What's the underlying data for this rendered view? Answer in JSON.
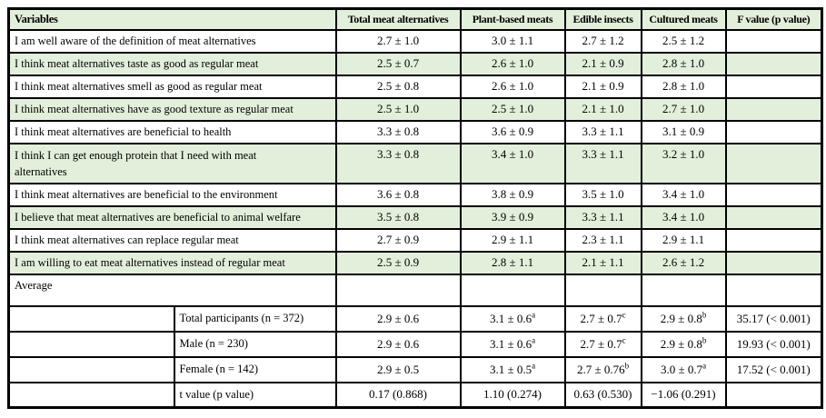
{
  "colors": {
    "row_band_green": "#e2efda",
    "border": "#000000",
    "page_background": "#ffffff",
    "text": "#000000"
  },
  "table": {
    "columns": [
      "Variables",
      "Total meat alternatives",
      "Plant-based meats",
      "Edible insects",
      "Cultured meats",
      "F value (p value)"
    ],
    "rows": [
      {
        "kind": "item",
        "green": false,
        "label": "I am well aware of the definition of meat alternatives",
        "values": [
          "2.7 ± 1.0",
          "3.0 ± 1.1",
          "2.7 ± 1.2",
          "2.5 ± 1.2",
          ""
        ]
      },
      {
        "kind": "item",
        "green": true,
        "label": "I think meat alternatives taste as good as regular meat",
        "values": [
          "2.5 ± 0.7",
          "2.6 ± 1.0",
          "2.1 ± 0.9",
          "2.8 ± 1.0",
          ""
        ]
      },
      {
        "kind": "item",
        "green": false,
        "label": "I think meat alternatives smell as good as regular meat",
        "values": [
          "2.5 ± 0.8",
          "2.6 ± 1.0",
          "2.1 ± 0.9",
          "2.8 ± 1.0",
          ""
        ]
      },
      {
        "kind": "item",
        "green": true,
        "label": "I think meat alternatives have as good texture as regular meat",
        "values": [
          "2.5 ± 1.0",
          "2.5 ± 1.0",
          "2.1 ± 1.0",
          "2.7 ± 1.0",
          ""
        ]
      },
      {
        "kind": "item",
        "green": false,
        "label": "I think meat alternatives are beneficial to health",
        "values": [
          "3.3 ± 0.8",
          "3.6 ± 0.9",
          "3.3 ± 1.1",
          "3.1 ± 0.9",
          ""
        ]
      },
      {
        "kind": "item",
        "green": true,
        "tall": true,
        "label": "I think I can get enough protein that I need with meat alternatives",
        "values": [
          "3.3 ± 0.8",
          "3.4 ± 1.0",
          "3.3 ± 1.1",
          "3.2 ± 1.0",
          ""
        ]
      },
      {
        "kind": "item",
        "green": false,
        "label": "I think meat alternatives are beneficial to the environment",
        "values": [
          "3.6 ± 0.8",
          "3.8 ± 0.9",
          "3.5 ± 1.0",
          "3.4 ± 1.0",
          ""
        ]
      },
      {
        "kind": "item",
        "green": true,
        "label": "I believe that meat alternatives are beneficial to animal welfare",
        "values": [
          "3.5 ± 0.8",
          "3.9 ± 0.9",
          "3.3 ± 1.1",
          "3.4 ± 1.0",
          ""
        ]
      },
      {
        "kind": "item",
        "green": false,
        "label": "I think meat alternatives can replace regular meat",
        "values": [
          "2.7 ± 0.9",
          "2.9 ± 1.1",
          "2.3 ± 1.1",
          "2.9 ± 1.1",
          ""
        ]
      },
      {
        "kind": "item",
        "green": true,
        "label": "I am willing to eat meat alternatives instead of regular meat",
        "values": [
          "2.5 ± 0.9",
          "2.8 ± 1.1",
          "2.1 ± 1.1",
          "2.6 ± 1.2",
          ""
        ]
      },
      {
        "kind": "section",
        "green": false,
        "label": "Average",
        "values": [
          "",
          "",
          "",
          "",
          ""
        ]
      },
      {
        "kind": "sub",
        "green": false,
        "label": "Total participants (n = 372)",
        "values": [
          {
            "v": "2.9 ± 0.6"
          },
          {
            "v": "3.1 ± 0.6",
            "sup": "a"
          },
          {
            "v": "2.7 ± 0.7",
            "sup": "c"
          },
          {
            "v": "2.9 ± 0.8",
            "sup": "b"
          },
          {
            "v": "35.17 (< 0.001)"
          }
        ]
      },
      {
        "kind": "sub",
        "green": false,
        "label": "Male (n = 230)",
        "values": [
          {
            "v": "2.9 ± 0.6"
          },
          {
            "v": "3.1 ± 0.6",
            "sup": "a"
          },
          {
            "v": "2.7 ± 0.7",
            "sup": "c"
          },
          {
            "v": "2.9 ± 0.8",
            "sup": "b"
          },
          {
            "v": "19.93 (< 0.001)"
          }
        ]
      },
      {
        "kind": "sub",
        "green": false,
        "label": "Female (n = 142)",
        "values": [
          {
            "v": "2.9 ± 0.5"
          },
          {
            "v": "3.1 ± 0.5",
            "sup": "a"
          },
          {
            "v": "2.7 ± 0.76",
            "sup": "b"
          },
          {
            "v": "3.0 ± 0.7",
            "sup": "a"
          },
          {
            "v": "17.52 (< 0.001)"
          }
        ]
      },
      {
        "kind": "sub",
        "green": false,
        "label": "t value (p value)",
        "values": [
          {
            "v": "0.17 (0.868)"
          },
          {
            "v": "1.10 (0.274)"
          },
          {
            "v": "0.63 (0.530)"
          },
          {
            "v": "−1.06 (0.291)"
          },
          {
            "v": ""
          }
        ]
      }
    ]
  }
}
